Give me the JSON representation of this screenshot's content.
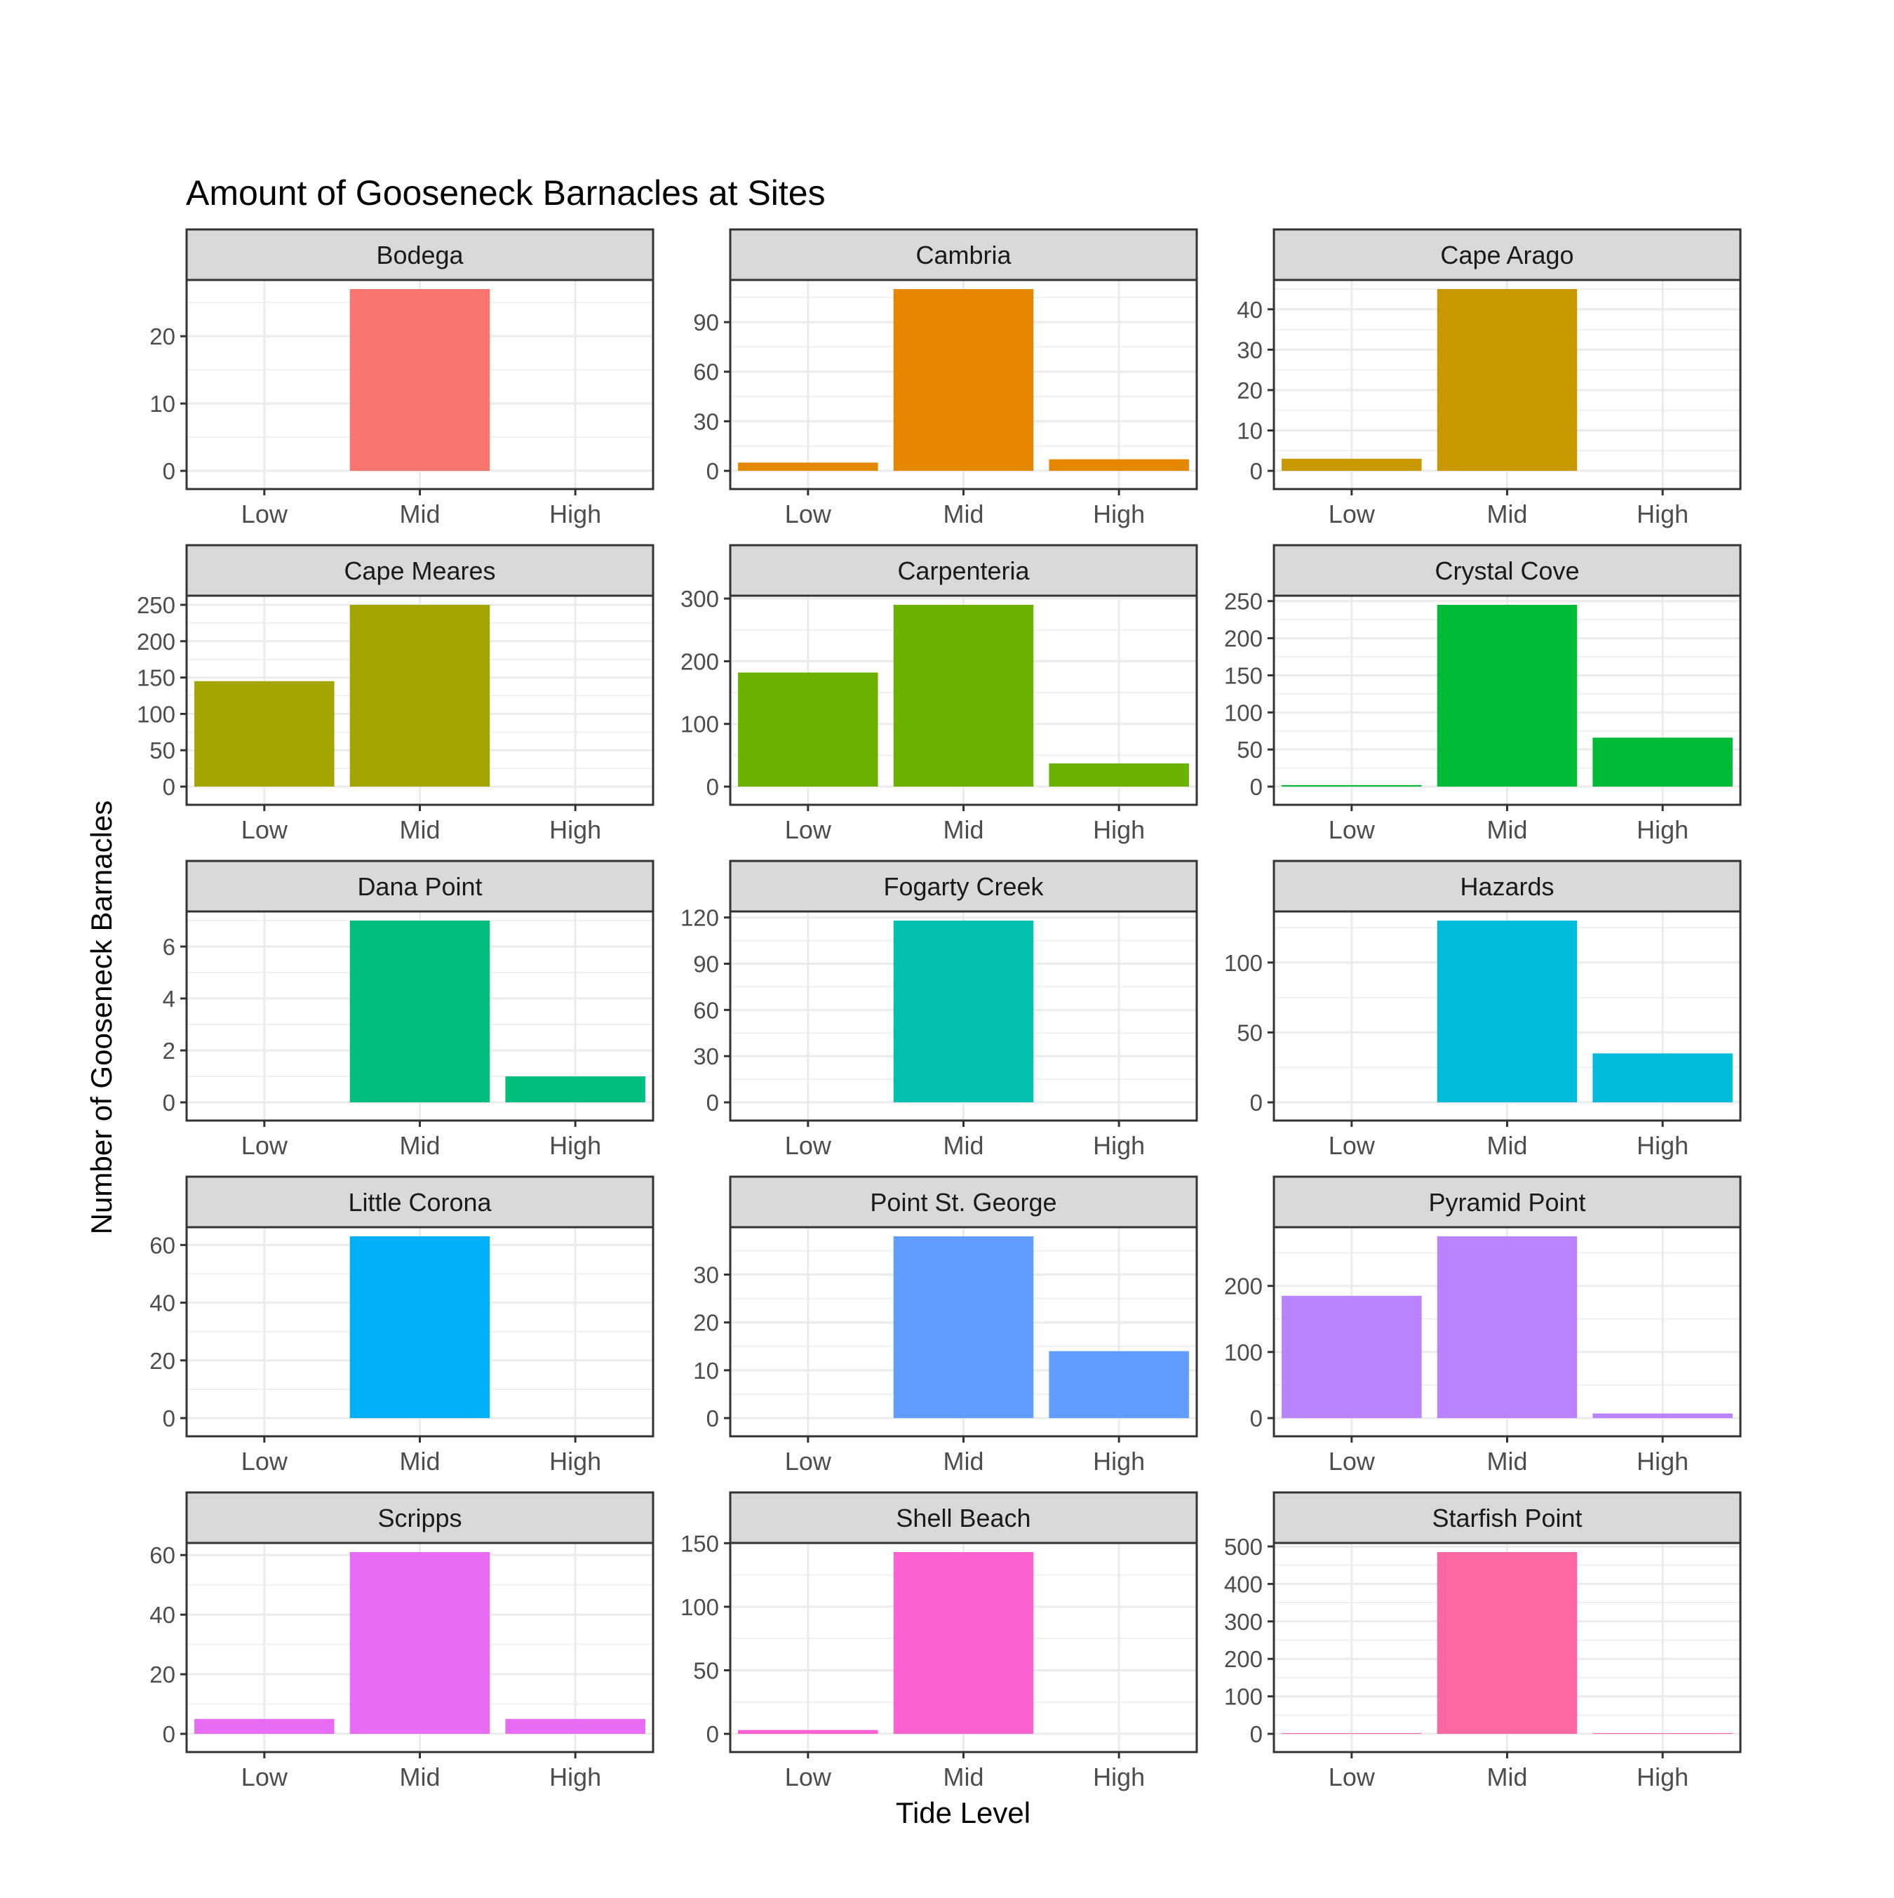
{
  "chart_data": {
    "type": "bar",
    "layout": "faceted",
    "title": "Amount of Gooseneck Barnacles at Sites",
    "xlabel": "Tide Level",
    "ylabel": "Number of Gooseneck Barnacles",
    "categories": [
      "Low",
      "Mid",
      "High"
    ],
    "grid": true,
    "legend": "none",
    "facets": [
      {
        "name": "Bodega",
        "values": [
          0,
          27,
          0
        ],
        "ylim": [
          -1.35,
          27
        ],
        "yticks": [
          0,
          10,
          20
        ],
        "color": "#F8766D"
      },
      {
        "name": "Cambria",
        "values": [
          5,
          110,
          7
        ],
        "ylim": [
          -5.5,
          110
        ],
        "yticks": [
          0,
          30,
          60,
          90
        ],
        "color": "#E58700"
      },
      {
        "name": "Cape Arago",
        "values": [
          3,
          45,
          0
        ],
        "ylim": [
          -2.25,
          45
        ],
        "yticks": [
          0,
          10,
          20,
          30,
          40
        ],
        "color": "#C99800"
      },
      {
        "name": "Cape Meares",
        "values": [
          145,
          250,
          0
        ],
        "ylim": [
          -12.5,
          250
        ],
        "yticks": [
          0,
          50,
          100,
          150,
          200,
          250
        ],
        "color": "#A3A500"
      },
      {
        "name": "Carpenteria",
        "values": [
          182,
          290,
          37
        ],
        "ylim": [
          -14.5,
          290
        ],
        "yticks": [
          0,
          100,
          200,
          300
        ],
        "color": "#6BB100"
      },
      {
        "name": "Crystal Cove",
        "values": [
          2,
          245,
          66
        ],
        "ylim": [
          -12.25,
          245
        ],
        "yticks": [
          0,
          50,
          100,
          150,
          200,
          250
        ],
        "color": "#00BA38"
      },
      {
        "name": "Dana Point",
        "values": [
          0,
          7,
          1
        ],
        "ylim": [
          -0.35,
          7
        ],
        "yticks": [
          0,
          2,
          4,
          6
        ],
        "color": "#00BF7D"
      },
      {
        "name": "Fogarty Creek",
        "values": [
          0,
          118,
          0
        ],
        "ylim": [
          -5.9,
          118
        ],
        "yticks": [
          0,
          30,
          60,
          90,
          120
        ],
        "color": "#00C0AF"
      },
      {
        "name": "Hazards",
        "values": [
          0,
          130,
          35
        ],
        "ylim": [
          -6.5,
          130
        ],
        "yticks": [
          0,
          50,
          100
        ],
        "color": "#00BCD8"
      },
      {
        "name": "Little Corona",
        "values": [
          0,
          63,
          0
        ],
        "ylim": [
          -3.15,
          63
        ],
        "yticks": [
          0,
          20,
          40,
          60
        ],
        "color": "#00B0F6"
      },
      {
        "name": "Point St. George",
        "values": [
          0,
          38,
          14
        ],
        "ylim": [
          -1.9,
          38
        ],
        "yticks": [
          0,
          10,
          20,
          30
        ],
        "color": "#619CFF"
      },
      {
        "name": "Pyramid Point",
        "values": [
          185,
          275,
          7
        ],
        "ylim": [
          -13.75,
          275
        ],
        "yticks": [
          0,
          100,
          200
        ],
        "color": "#B983FF"
      },
      {
        "name": "Scripps",
        "values": [
          5,
          61,
          5
        ],
        "ylim": [
          -3.05,
          61
        ],
        "yticks": [
          0,
          20,
          40,
          60
        ],
        "color": "#E76BF3"
      },
      {
        "name": "Shell Beach",
        "values": [
          3,
          143,
          0
        ],
        "ylim": [
          -7.15,
          143
        ],
        "yticks": [
          0,
          50,
          100,
          150
        ],
        "color": "#FD61D1"
      },
      {
        "name": "Starfish Point",
        "values": [
          2,
          485,
          2
        ],
        "ylim": [
          -24.25,
          485
        ],
        "yticks": [
          0,
          100,
          200,
          300,
          400,
          500
        ],
        "color": "#FF67A4"
      }
    ]
  }
}
